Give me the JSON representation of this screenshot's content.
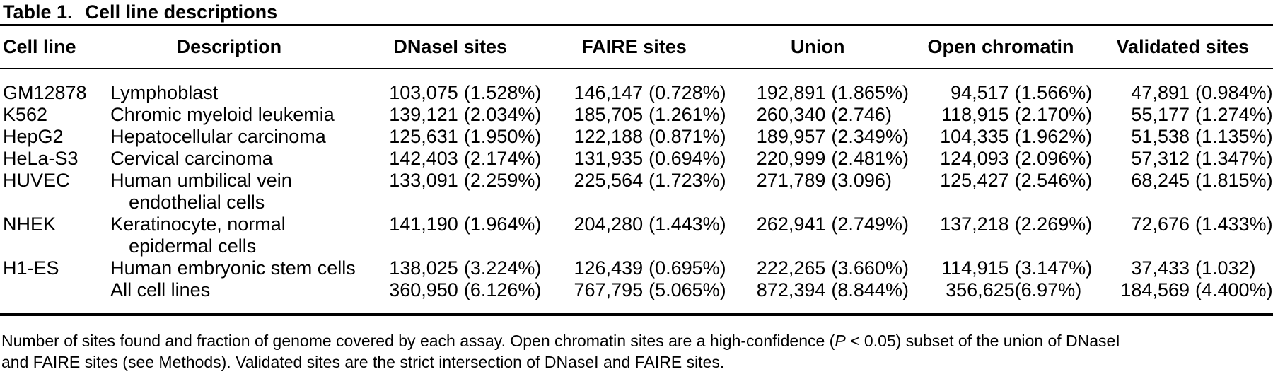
{
  "title": {
    "label": "Table 1.",
    "text": "Cell line descriptions"
  },
  "table": {
    "columns": [
      {
        "label": "Cell line"
      },
      {
        "label": "Description"
      },
      {
        "label": "DNaseI sites"
      },
      {
        "label": "FAIRE sites"
      },
      {
        "label": "Union"
      },
      {
        "label": "Open chromatin"
      },
      {
        "label": "Validated sites"
      }
    ],
    "rows": [
      {
        "cell_line": "GM12878",
        "description": [
          "Lymphoblast"
        ],
        "values": [
          "103,075 (1.528%)",
          "146,147 (0.728%)",
          "192,891 (1.865%)",
          "94,517 (1.566%)",
          "47,891 (0.984%)"
        ]
      },
      {
        "cell_line": "K562",
        "description": [
          "Chromic myeloid leukemia"
        ],
        "values": [
          "139,121 (2.034%)",
          "185,705 (1.261%)",
          "260,340 (2.746)",
          "118,915 (2.170%)",
          "55,177 (1.274%)"
        ]
      },
      {
        "cell_line": "HepG2",
        "description": [
          "Hepatocellular carcinoma"
        ],
        "values": [
          "125,631 (1.950%)",
          "122,188 (0.871%)",
          "189,957 (2.349%)",
          "104,335 (1.962%)",
          "51,538 (1.135%)"
        ]
      },
      {
        "cell_line": "HeLa-S3",
        "description": [
          "Cervical carcinoma"
        ],
        "values": [
          "142,403 (2.174%)",
          "131,935 (0.694%)",
          "220,999 (2.481%)",
          "124,093 (2.096%)",
          "57,312 (1.347%)"
        ]
      },
      {
        "cell_line": "HUVEC",
        "description": [
          "Human umbilical vein",
          "endothelial cells"
        ],
        "values": [
          "133,091 (2.259%)",
          "225,564 (1.723%)",
          "271,789 (3.096)",
          "125,427 (2.546%)",
          "68,245 (1.815%)"
        ]
      },
      {
        "cell_line": "NHEK",
        "description": [
          "Keratinocyte, normal",
          "epidermal cells"
        ],
        "values": [
          "141,190 (1.964%)",
          "204,280 (1.443%)",
          "262,941 (2.749%)",
          "137,218 (2.269%)",
          "72,676 (1.433%)"
        ]
      },
      {
        "cell_line": "H1-ES",
        "description": [
          "Human embryonic stem cells"
        ],
        "values": [
          "138,025 (3.224%)",
          "126,439 (0.695%)",
          "222,265 (3.660%)",
          "114,915 (3.147%)",
          "37,433 (1.032)"
        ]
      },
      {
        "cell_line": "",
        "description": [
          "All cell lines"
        ],
        "values": [
          "360,950 (6.126%)",
          "767,795 (5.065%)",
          "872,394 (8.844%)",
          "356,625(6.97%)",
          "184,569 (4.400%)"
        ]
      }
    ]
  },
  "footnote": {
    "line1_pre": "Number of sites found and fraction of genome covered by each assay. Open chromatin sites are a high-confidence (",
    "line1_italic": "P",
    "line1_post": " < 0.05) subset of the union of DNaseI",
    "line2": "and FAIRE sites (see Methods). Validated sites are the strict intersection of DNaseI and FAIRE sites."
  },
  "colors": {
    "text": "#000000",
    "background": "#ffffff",
    "rule": "#000000"
  }
}
